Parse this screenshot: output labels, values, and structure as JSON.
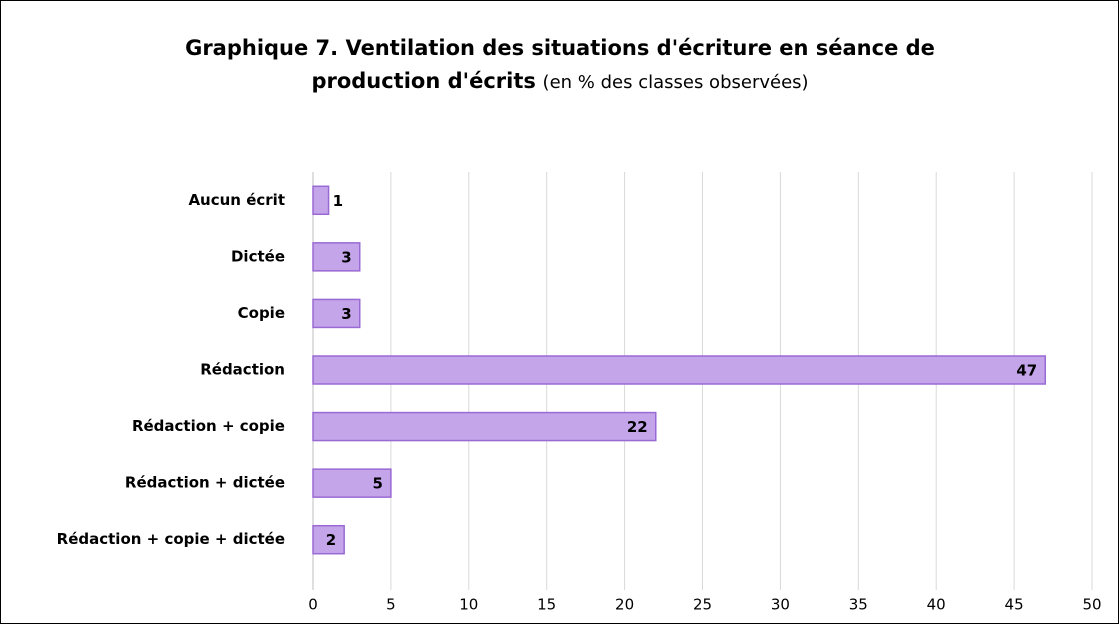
{
  "chart_data": {
    "type": "bar",
    "orientation": "horizontal",
    "title": "Graphique 7. Ventilation des situations d'écriture en séance de production d'écrits",
    "subtitle": "(en % des classes observées)",
    "categories": [
      "Aucun écrit",
      "Dictée",
      "Copie",
      "Rédaction",
      "Rédaction + copie",
      "Rédaction + dictée",
      "Rédaction + copie + dictée"
    ],
    "values": [
      1,
      3,
      3,
      47,
      22,
      5,
      2
    ],
    "color": "#c5a5ea",
    "xlim": [
      0,
      50
    ],
    "xticks": [
      0,
      5,
      10,
      15,
      20,
      25,
      30,
      35,
      40,
      45,
      50
    ],
    "grid": true
  }
}
